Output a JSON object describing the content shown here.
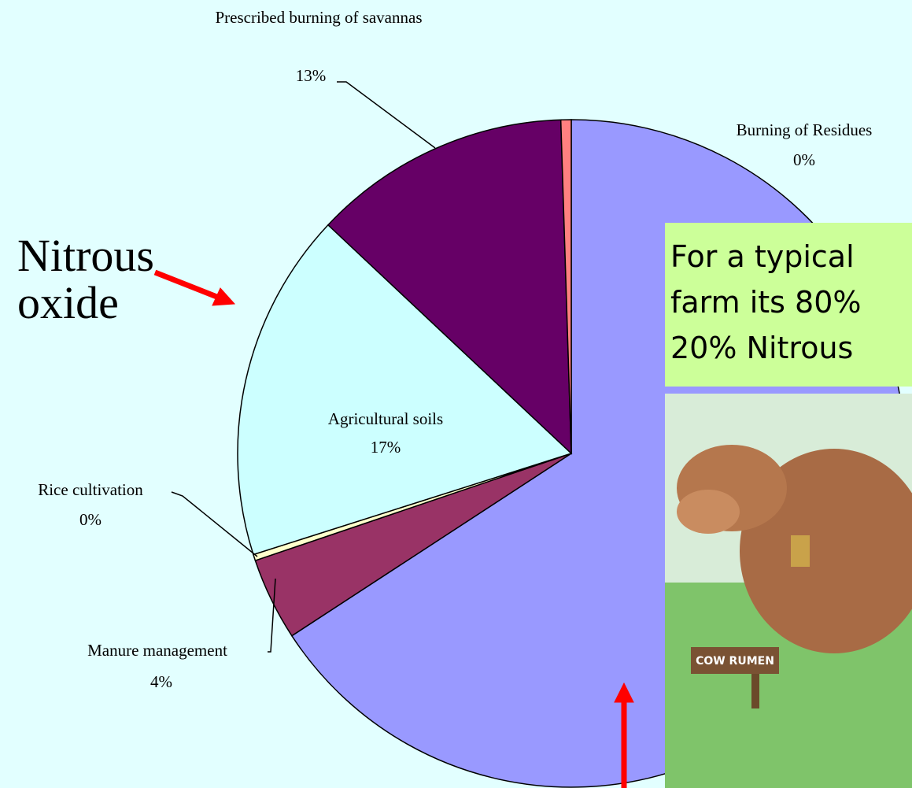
{
  "chart_data": {
    "type": "pie",
    "categories": [
      null,
      "Manure management",
      "Rice cultivation",
      "Agricultural soils",
      "Prescribed burning of savannas",
      "Burning of Residues"
    ],
    "values": [
      65.8,
      4,
      0.3,
      16.9,
      12.5,
      0.5
    ],
    "value_labels": [
      null,
      "4%",
      "0%",
      "17%",
      "13%",
      "0%"
    ],
    "colors": [
      "#9999ff",
      "#993366",
      "#ffffcc",
      "#ccffff",
      "#660066",
      "#ff8080"
    ]
  },
  "heading": [
    "Nitrous",
    "oxide"
  ],
  "callout": [
    "For a typical",
    "farm its 80%",
    "20% Nitrous"
  ],
  "image_sign": "COW RUMEN"
}
